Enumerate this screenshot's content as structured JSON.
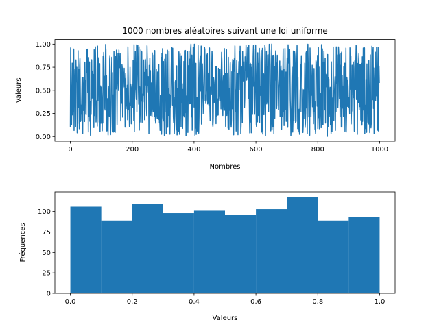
{
  "chart_data": [
    {
      "type": "line",
      "title": "1000 nombres aléatoires suivant une loi uniforme",
      "xlabel": "Nombres",
      "ylabel": "Valeurs",
      "xlim": [
        -50,
        1050
      ],
      "ylim": [
        -0.05,
        1.05
      ],
      "xticks": [
        0,
        200,
        400,
        600,
        800,
        1000
      ],
      "xtick_labels": [
        "0",
        "200",
        "400",
        "600",
        "800",
        "1000"
      ],
      "yticks": [
        0.0,
        0.25,
        0.5,
        0.75,
        1.0
      ],
      "ytick_labels": [
        "0.00",
        "0.25",
        "0.50",
        "0.75",
        "1.00"
      ],
      "grid": false,
      "color": "#1f77b4",
      "series": [
        {
          "points_count": 1000,
          "x_range": [
            0,
            999
          ],
          "y_range": [
            0,
            1
          ],
          "distribution": "uniform",
          "y_first": 0.1,
          "y_last": 0.58
        }
      ]
    },
    {
      "type": "bar",
      "title": "",
      "xlabel": "Valeurs",
      "ylabel": "Fréquences",
      "xlim": [
        -0.05,
        1.05
      ],
      "ylim": [
        0,
        124
      ],
      "xticks": [
        0.0,
        0.2,
        0.4,
        0.6,
        0.8,
        1.0
      ],
      "xtick_labels": [
        "0.0",
        "0.2",
        "0.4",
        "0.6",
        "0.8",
        "1.0"
      ],
      "yticks": [
        0,
        25,
        50,
        75,
        100
      ],
      "ytick_labels": [
        "0",
        "25",
        "50",
        "75",
        "100"
      ],
      "grid": false,
      "color": "#1f77b4",
      "bin_edges": [
        0.0,
        0.1,
        0.2,
        0.3,
        0.4,
        0.5,
        0.6,
        0.7,
        0.8,
        0.9,
        1.0
      ],
      "values": [
        106,
        89,
        109,
        98,
        101,
        96,
        103,
        118,
        89,
        93
      ]
    }
  ]
}
